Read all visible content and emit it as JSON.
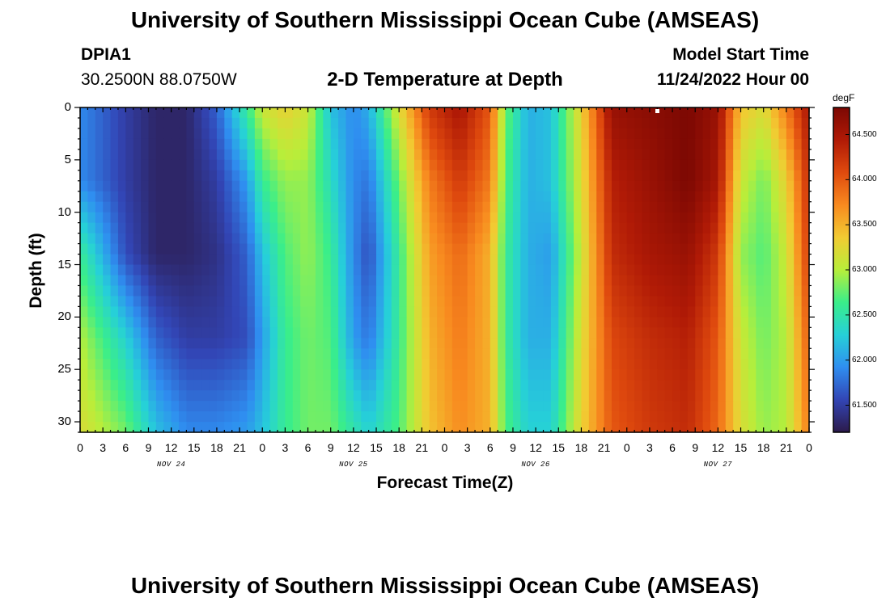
{
  "header": {
    "title": "University of Southern Mississippi Ocean Cube (AMSEAS)",
    "station": "DPIA1",
    "coords": "30.2500N  88.0750W",
    "subtitle": "2-D Temperature at Depth",
    "start_label": "Model Start Time",
    "start_value": "11/24/2022 Hour 00"
  },
  "footer": {
    "title": "University of Southern Mississippi Ocean Cube (AMSEAS)"
  },
  "colorbar": {
    "unit": "degF",
    "ticks": [
      "61.500",
      "62.000",
      "62.500",
      "63.000",
      "63.500",
      "64.000",
      "64.500"
    ],
    "min": 61.2,
    "max": 64.8,
    "colors": [
      "#2c1a4a",
      "#3245b5",
      "#2f8ef0",
      "#26d0d8",
      "#3aee8a",
      "#b8ee3a",
      "#f2cb32",
      "#f88a1f",
      "#df4a0e",
      "#b01a06",
      "#7c0803"
    ]
  },
  "chart_data": {
    "type": "heatmap",
    "title": "2-D Temperature at Depth",
    "xlabel": "Forecast Time(Z)",
    "ylabel": "Depth (ft)",
    "x_ticks": [
      "0",
      "3",
      "6",
      "9",
      "12",
      "15",
      "18",
      "21",
      "0",
      "3",
      "6",
      "9",
      "12",
      "15",
      "18",
      "21",
      "0",
      "3",
      "6",
      "9",
      "12",
      "15",
      "18",
      "21",
      "0",
      "3",
      "6",
      "9",
      "12",
      "15",
      "18",
      "21",
      "0"
    ],
    "day_labels": [
      "NOV 24",
      "NOV 25",
      "NOV 26",
      "NOV 27"
    ],
    "y_ticks": [
      "0",
      "5",
      "10",
      "15",
      "20",
      "25",
      "30"
    ],
    "xlim": [
      0,
      96
    ],
    "ylim": [
      0,
      31
    ],
    "x_hours": [
      0,
      6,
      10,
      14,
      18,
      22,
      24,
      27,
      30,
      33,
      36,
      38,
      42,
      46,
      50,
      54,
      56,
      59,
      62,
      66,
      70,
      75,
      80,
      84,
      87,
      90,
      93,
      96
    ],
    "depth_ft": [
      0,
      7,
      14,
      22,
      31
    ],
    "temperature_degF": [
      [
        61.9,
        61.5,
        61.3,
        61.3,
        61.7,
        62.6,
        63.1,
        63.3,
        63.1,
        62.2,
        61.9,
        62.1,
        63.2,
        64.2,
        64.5,
        64.0,
        62.8,
        62.1,
        62.2,
        63.3,
        64.6,
        64.7,
        64.8,
        64.6,
        63.4,
        63.2,
        63.8,
        64.5
      ],
      [
        61.9,
        61.5,
        61.3,
        61.3,
        61.5,
        62.0,
        62.6,
        62.9,
        62.9,
        62.4,
        61.9,
        61.8,
        62.8,
        63.8,
        64.2,
        63.8,
        62.7,
        62.1,
        62.2,
        63.2,
        64.4,
        64.6,
        64.8,
        64.5,
        63.1,
        62.8,
        63.3,
        64.3
      ],
      [
        62.6,
        61.6,
        61.3,
        61.3,
        61.4,
        61.7,
        62.2,
        62.7,
        62.9,
        62.6,
        61.9,
        61.6,
        62.6,
        63.6,
        63.9,
        63.5,
        62.6,
        62.1,
        62.0,
        63.1,
        64.3,
        64.5,
        64.6,
        64.2,
        62.9,
        62.7,
        63.1,
        64.2
      ],
      [
        63.0,
        62.3,
        61.7,
        61.5,
        61.5,
        61.6,
        62.0,
        62.6,
        62.8,
        62.7,
        62.0,
        61.8,
        62.6,
        63.5,
        63.8,
        63.5,
        62.6,
        62.1,
        62.1,
        63.2,
        64.1,
        64.3,
        64.4,
        64.0,
        63.1,
        62.8,
        63.0,
        64.0
      ],
      [
        63.2,
        62.8,
        62.2,
        61.9,
        61.9,
        62.0,
        62.2,
        62.6,
        62.8,
        62.8,
        62.5,
        62.3,
        62.7,
        63.4,
        63.7,
        63.5,
        62.7,
        62.3,
        62.3,
        63.3,
        64.0,
        64.2,
        64.3,
        63.9,
        63.2,
        62.9,
        63.0,
        63.8
      ]
    ]
  }
}
